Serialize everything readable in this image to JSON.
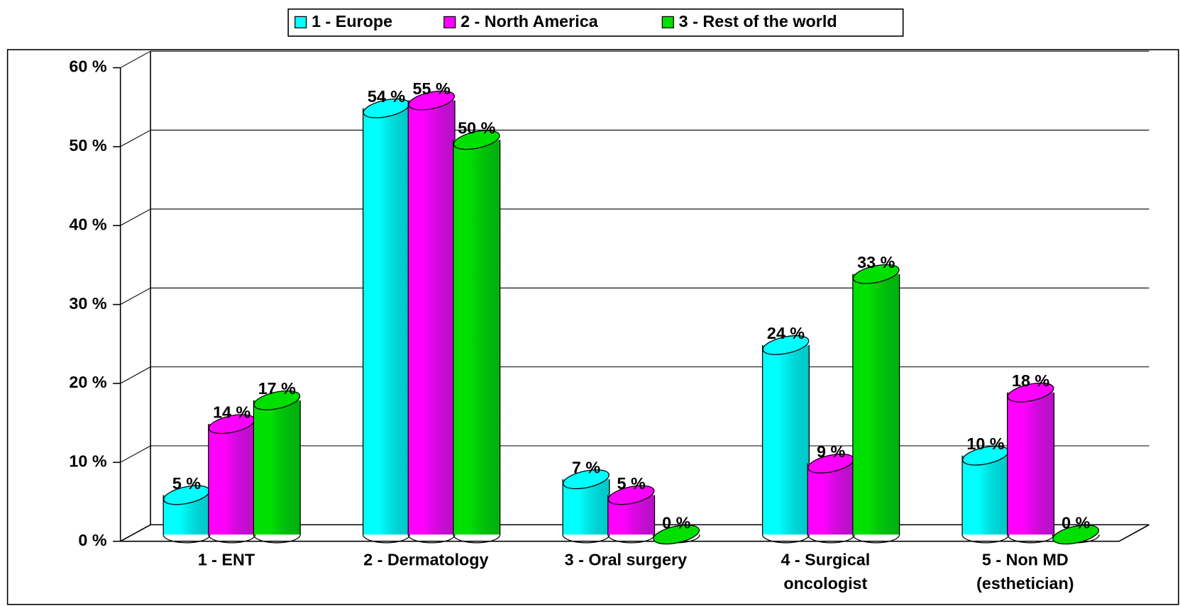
{
  "chart_data": {
    "type": "bar3d",
    "categories": [
      "1 - ENT",
      "2 - Dermatology",
      "3 - Oral surgery",
      "4 - Surgical\noncologist",
      "5 - Non MD\n(esthetician)"
    ],
    "series": [
      {
        "name": "1 - Europe",
        "color": "#00ffff",
        "values": [
          5,
          54,
          7,
          24,
          10
        ],
        "value_labels": [
          "5 %",
          "54 %",
          "7 %",
          "24 %",
          "10 %"
        ]
      },
      {
        "name": "2 - North America",
        "color": "#ff00ff",
        "values": [
          14,
          55,
          5,
          9,
          18
        ],
        "value_labels": [
          "14 %",
          "55 %",
          "5 %",
          "9 %",
          "18 %"
        ]
      },
      {
        "name": "3 - Rest of the world",
        "color": "#00e000",
        "values": [
          17,
          50,
          0,
          33,
          0
        ],
        "value_labels": [
          "17 %",
          "50 %",
          "0 %",
          "33 %",
          "0 %"
        ]
      }
    ],
    "ylim": [
      0,
      60
    ],
    "yticks": [
      {
        "value": 0,
        "label": "0 %"
      },
      {
        "value": 10,
        "label": "10 %"
      },
      {
        "value": 20,
        "label": "20 %"
      },
      {
        "value": 30,
        "label": "30 %"
      },
      {
        "value": 40,
        "label": "40 %"
      },
      {
        "value": 50,
        "label": "50 %"
      },
      {
        "value": 60,
        "label": "60 %"
      }
    ],
    "grid": true,
    "legend": "top"
  }
}
